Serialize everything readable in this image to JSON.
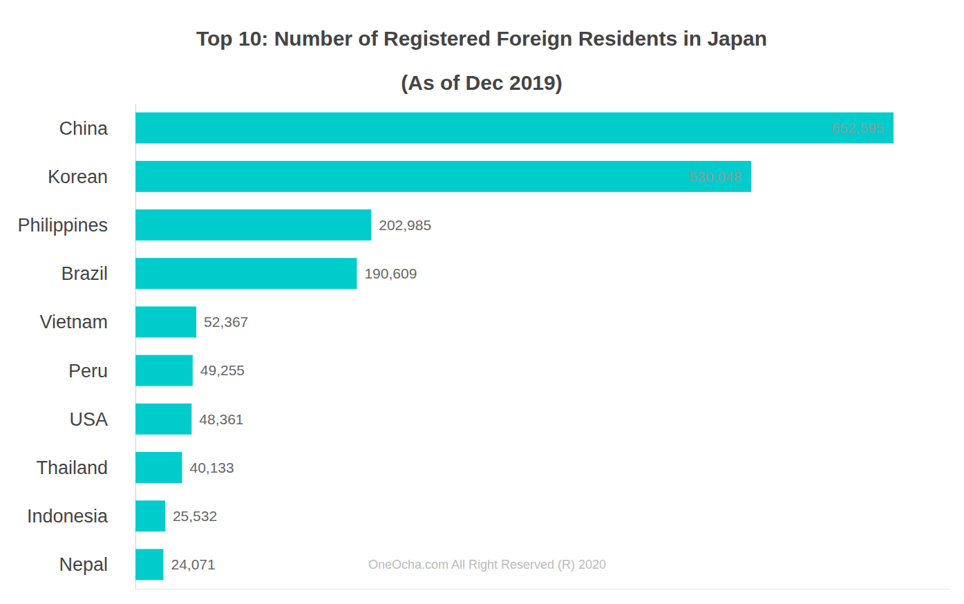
{
  "chart_data": {
    "type": "bar",
    "orientation": "horizontal",
    "title": "Top 10: Number of Registered Foreign Residents in Japan",
    "subtitle": "(As of Dec 2019)",
    "categories": [
      "China",
      "Korean",
      "Philippines",
      "Brazil",
      "Vietnam",
      "Peru",
      "USA",
      "Thailand",
      "Indonesia",
      "Nepal"
    ],
    "values": [
      652595,
      530048,
      202985,
      190609,
      52367,
      49255,
      48361,
      40133,
      25532,
      24071
    ],
    "value_labels": [
      "652,595",
      "530,048",
      "202,985",
      "190,609",
      "52,367",
      "49,255",
      "48,361",
      "40,133",
      "25,532",
      "24,071"
    ],
    "color": "#00cccc",
    "xlim": [
      0,
      700000
    ],
    "data_labels": true,
    "tick_labels": "y",
    "grid": false,
    "annotations": [
      "OneOcha.com All Right Reserved (R) 2020"
    ]
  }
}
